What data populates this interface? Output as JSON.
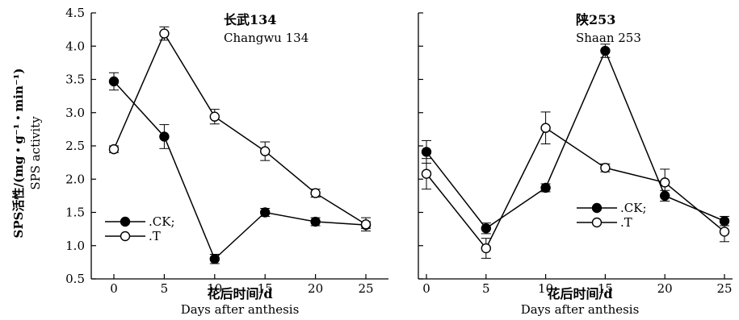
{
  "y_axis_label_cn": "SPS活性/(mg・g⁻¹・min⁻¹)",
  "y_axis_label_en": "SPS activity",
  "chart_data": [
    {
      "type": "line",
      "title": "长武134",
      "subtitle": "Changwu 134",
      "xlabel": "花后时间/d",
      "xlabel_en": "Days after anthesis",
      "ylabel": "SPS活性/(mg・g⁻¹・min⁻¹)",
      "x": [
        0,
        5,
        10,
        15,
        20,
        25
      ],
      "xticks": [
        "0",
        "5",
        "10",
        "15",
        "20",
        "25"
      ],
      "yticks": [
        "0.5",
        "1.0",
        "1.5",
        "2.0",
        "2.5",
        "3.0",
        "3.5",
        "4.0",
        "4.5"
      ],
      "xlim": [
        0,
        25
      ],
      "ylim": [
        0.5,
        4.5
      ],
      "legend": "lower-left",
      "grid": false,
      "series": [
        {
          "name": ".CK;",
          "marker": "filled-circle",
          "values": [
            3.47,
            2.64,
            0.8,
            1.5,
            1.36,
            1.31
          ],
          "errors": [
            0.13,
            0.18,
            0.07,
            0.06,
            0.06,
            0.05
          ]
        },
        {
          "name": ".T",
          "marker": "open-circle",
          "values": [
            2.45,
            4.19,
            2.94,
            2.42,
            1.79,
            1.32
          ],
          "errors": [
            0.05,
            0.1,
            0.11,
            0.14,
            0.06,
            0.1
          ]
        }
      ]
    },
    {
      "type": "line",
      "title": "陕253",
      "subtitle": "Shaan 253",
      "xlabel": "花后时间/d",
      "xlabel_en": "Days after anthesis",
      "x": [
        0,
        5,
        10,
        15,
        20,
        25
      ],
      "xticks": [
        "0",
        "5",
        "10",
        "15",
        "20",
        "25"
      ],
      "xlim": [
        0,
        25
      ],
      "ylim": [
        0.5,
        4.5
      ],
      "legend": "lower-right",
      "grid": false,
      "series": [
        {
          "name": ".CK;",
          "marker": "filled-circle",
          "values": [
            2.41,
            1.26,
            1.87,
            3.93,
            1.75,
            1.37
          ],
          "errors": [
            0.17,
            0.08,
            0.06,
            0.1,
            0.08,
            0.07
          ]
        },
        {
          "name": ".T",
          "marker": "open-circle",
          "values": [
            2.08,
            0.96,
            2.77,
            2.17,
            1.95,
            1.21
          ],
          "errors": [
            0.23,
            0.15,
            0.24,
            0.06,
            0.2,
            0.15
          ]
        }
      ]
    }
  ]
}
